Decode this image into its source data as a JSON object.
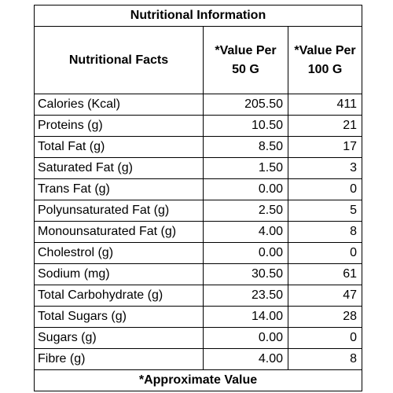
{
  "table": {
    "title": "Nutritional Information",
    "headers": {
      "facts": "Nutritional Facts",
      "per50": "*Value Per 50 G",
      "per100": "*Value Per 100 G"
    },
    "rows": [
      {
        "name": "Calories (Kcal)",
        "per50": "205.50",
        "per100": "411"
      },
      {
        "name": "Proteins (g)",
        "per50": "10.50",
        "per100": "21"
      },
      {
        "name": "Total Fat (g)",
        "per50": "8.50",
        "per100": "17"
      },
      {
        "name": "Saturated Fat (g)",
        "per50": "1.50",
        "per100": "3"
      },
      {
        "name": "Trans Fat (g)",
        "per50": "0.00",
        "per100": "0"
      },
      {
        "name": "Polyunsaturated Fat (g)",
        "per50": "2.50",
        "per100": "5"
      },
      {
        "name": "Monounsaturated Fat (g)",
        "per50": "4.00",
        "per100": "8"
      },
      {
        "name": "Cholestrol (g)",
        "per50": "0.00",
        "per100": "0"
      },
      {
        "name": "Sodium  (mg)",
        "per50": "30.50",
        "per100": "61"
      },
      {
        "name": "Total Carbohydrate (g)",
        "per50": "23.50",
        "per100": "47"
      },
      {
        "name": "Total Sugars (g)",
        "per50": "14.00",
        "per100": "28"
      },
      {
        "name": "Sugars (g)",
        "per50": "0.00",
        "per100": "0"
      },
      {
        "name": "Fibre (g)",
        "per50": "4.00",
        "per100": "8"
      }
    ],
    "footer": "*Approximate Value"
  }
}
